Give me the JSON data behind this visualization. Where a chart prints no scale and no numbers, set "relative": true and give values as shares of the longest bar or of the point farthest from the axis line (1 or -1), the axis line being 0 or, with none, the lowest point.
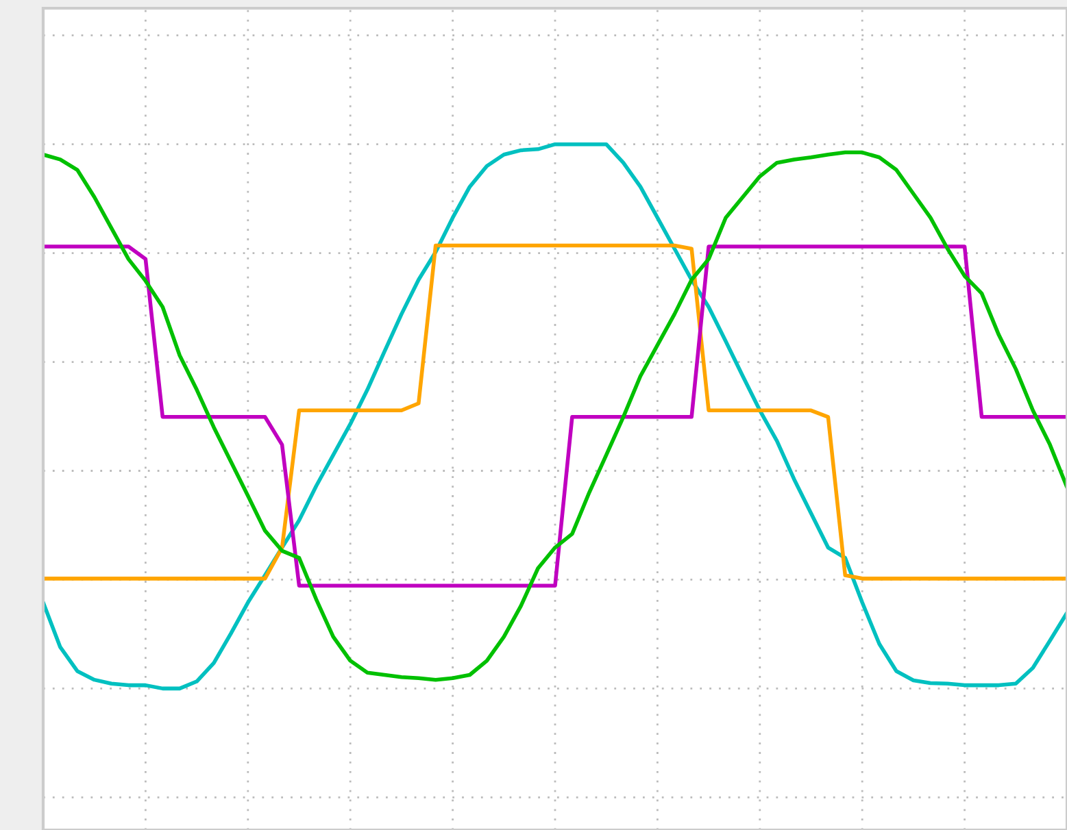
{
  "chart_data": {
    "type": "line",
    "relative": true,
    "grid": true,
    "legend": false,
    "line_style": "solid",
    "marker": "none",
    "categories": [
      null,
      null,
      null,
      null,
      null,
      null,
      null,
      null,
      null,
      null,
      null,
      null,
      null,
      null,
      null,
      null,
      null,
      null,
      null,
      null,
      null,
      null,
      null,
      null,
      null,
      null,
      null,
      null,
      null,
      null,
      null,
      null,
      null,
      null,
      null,
      null,
      null,
      null,
      null,
      null,
      null,
      null,
      null,
      null,
      null,
      null,
      null,
      null,
      null,
      null,
      null,
      null,
      null,
      null,
      null,
      null,
      null,
      null,
      null,
      null,
      null
    ],
    "series": [
      {
        "color": "#00c0c0",
        "values": [
          0.158,
          0.076,
          0.032,
          0.016,
          0.009,
          0.006,
          0.006,
          0,
          0,
          0.013,
          0.047,
          0.101,
          0.158,
          0.208,
          0.259,
          0.309,
          0.372,
          0.429,
          0.486,
          0.549,
          0.619,
          0.688,
          0.751,
          0.802,
          0.865,
          0.922,
          0.96,
          0.981,
          0.989,
          0.991,
          1,
          1,
          1,
          1,
          0.966,
          0.922,
          0.865,
          0.808,
          0.751,
          0.701,
          0.638,
          0.574,
          0.511,
          0.455,
          0.385,
          0.322,
          0.259,
          0.24,
          0.158,
          0.082,
          0.032,
          0.015,
          0.01,
          0.009,
          0.006,
          0.006,
          0.006,
          0.009,
          0.038,
          0.088,
          0.139
        ]
      },
      {
        "color": "#ffa500",
        "values": [
          0.202,
          0.202,
          0.202,
          0.202,
          0.202,
          0.202,
          0.202,
          0.202,
          0.202,
          0.202,
          0.202,
          0.202,
          0.202,
          0.202,
          0.259,
          0.511,
          0.511,
          0.511,
          0.511,
          0.511,
          0.511,
          0.511,
          0.524,
          0.814,
          0.814,
          0.814,
          0.814,
          0.814,
          0.814,
          0.814,
          0.814,
          0.814,
          0.814,
          0.814,
          0.814,
          0.814,
          0.814,
          0.814,
          0.808,
          0.511,
          0.511,
          0.511,
          0.511,
          0.511,
          0.511,
          0.511,
          0.499,
          0.208,
          0.202,
          0.202,
          0.202,
          0.202,
          0.202,
          0.202,
          0.202,
          0.202,
          0.202,
          0.202,
          0.202,
          0.202,
          0.202
        ]
      },
      {
        "color": "#c000c0",
        "values": [
          0.812,
          0.812,
          0.812,
          0.812,
          0.812,
          0.812,
          0.789,
          0.499,
          0.499,
          0.499,
          0.499,
          0.499,
          0.499,
          0.499,
          0.448,
          0.189,
          0.189,
          0.189,
          0.189,
          0.189,
          0.189,
          0.189,
          0.189,
          0.189,
          0.189,
          0.189,
          0.189,
          0.189,
          0.189,
          0.189,
          0.189,
          0.499,
          0.499,
          0.499,
          0.499,
          0.499,
          0.499,
          0.499,
          0.499,
          0.812,
          0.812,
          0.812,
          0.812,
          0.812,
          0.812,
          0.812,
          0.812,
          0.812,
          0.812,
          0.812,
          0.812,
          0.812,
          0.812,
          0.812,
          0.812,
          0.499,
          0.499,
          0.499,
          0.499,
          0.499,
          0.499
        ]
      },
      {
        "color": "#00c000",
        "values": [
          0.981,
          0.972,
          0.953,
          0.903,
          0.846,
          0.789,
          0.749,
          0.701,
          0.612,
          0.549,
          0.48,
          0.417,
          0.354,
          0.29,
          0.253,
          0.24,
          0.164,
          0.095,
          0.051,
          0.029,
          0.025,
          0.021,
          0.019,
          0.016,
          0.019,
          0.025,
          0.051,
          0.095,
          0.152,
          0.221,
          0.259,
          0.284,
          0.36,
          0.429,
          0.499,
          0.574,
          0.631,
          0.688,
          0.751,
          0.789,
          0.865,
          0.903,
          0.941,
          0.966,
          0.972,
          0.976,
          0.981,
          0.985,
          0.985,
          0.976,
          0.953,
          0.909,
          0.865,
          0.808,
          0.758,
          0.726,
          0.65,
          0.587,
          0.511,
          0.448,
          0.37
        ]
      }
    ]
  }
}
